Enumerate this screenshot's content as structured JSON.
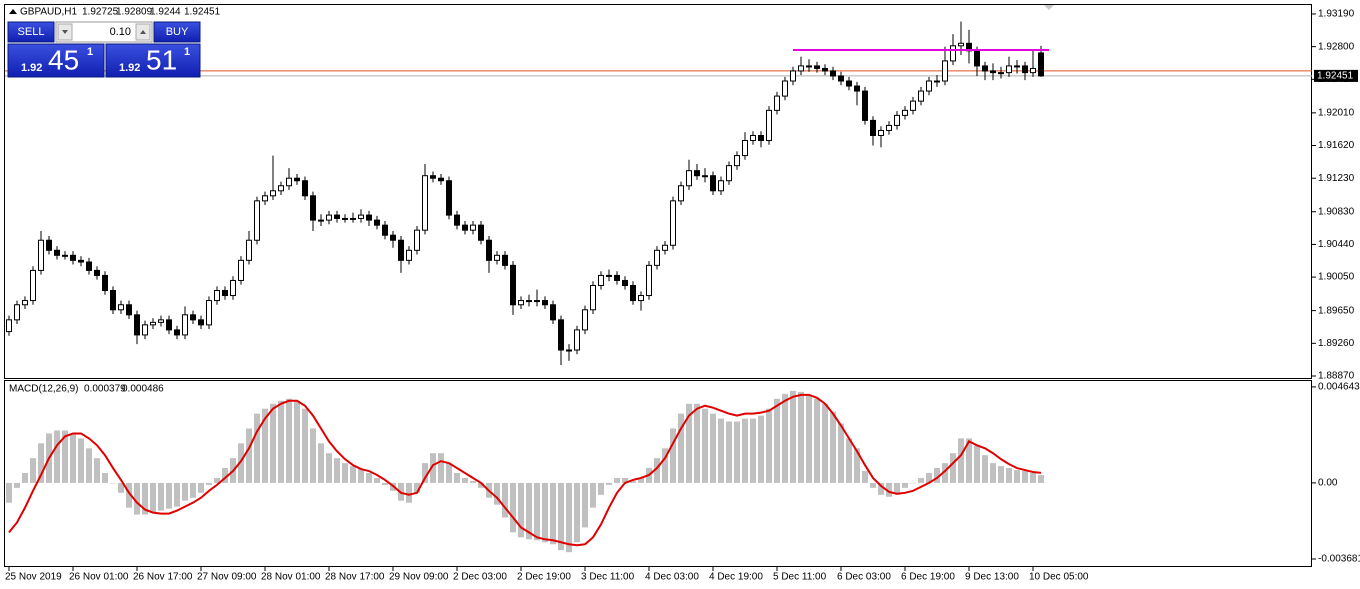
{
  "chart_data": [
    {
      "type": "candlestick",
      "symbol": "GBPAUD,H1",
      "open": [
        1.894,
        1.8954,
        1.8972,
        1.8977,
        1.9013,
        1.9049,
        1.9037,
        1.9031,
        1.9031,
        1.9025,
        1.9023,
        1.9013,
        1.9007,
        1.8989,
        1.8966,
        1.8972,
        1.896,
        1.8936,
        1.8948,
        1.8951,
        1.8954,
        1.8942,
        1.8936,
        1.896,
        1.8954,
        1.8948,
        1.8977,
        1.8989,
        1.8983,
        1.9001,
        1.9025,
        1.9049,
        1.9096,
        1.9102,
        1.9108,
        1.9114,
        1.9123,
        1.912,
        1.9102,
        1.9073,
        1.9073,
        1.9079,
        1.9075,
        1.9075,
        1.9075,
        1.9079,
        1.9073,
        1.9067,
        1.9055,
        1.9049,
        1.9025,
        1.9037,
        1.9061,
        1.9126,
        1.9123,
        1.912,
        1.9079,
        1.9067,
        1.9061,
        1.9067,
        1.9049,
        1.9025,
        1.9031,
        1.9019,
        1.8972,
        1.8977,
        1.8977,
        1.8977,
        1.8972,
        1.8954,
        1.8918,
        1.8918,
        1.8942,
        1.8966,
        1.8995,
        1.9007,
        1.9007,
        1.9001,
        1.8995,
        1.8977,
        1.8983,
        1.9019,
        1.9037,
        1.9043,
        1.9096,
        1.9114,
        1.9132,
        1.9126,
        1.9126,
        1.9108,
        1.912,
        1.9138,
        1.915,
        1.9168,
        1.9174,
        1.9168,
        1.9204,
        1.9221,
        1.9239,
        1.9251,
        1.9257,
        1.9257,
        1.9254,
        1.9251,
        1.9245,
        1.9239,
        1.9233,
        1.9227,
        1.9192,
        1.9174,
        1.918,
        1.9186,
        1.9198,
        1.9204,
        1.9215,
        1.9227,
        1.9239,
        1.9239,
        1.9263,
        1.9281,
        1.9284,
        1.9275,
        1.9257,
        1.9251,
        1.9249,
        1.9249,
        1.9257,
        1.9257,
        1.9249,
        1.92725
      ],
      "high": [
        1.8959,
        1.8977,
        1.8982,
        1.9018,
        1.906,
        1.9054,
        1.9042,
        1.9036,
        1.9036,
        1.903,
        1.9028,
        1.9018,
        1.9012,
        1.8994,
        1.8977,
        1.8977,
        1.8965,
        1.8953,
        1.8956,
        1.8959,
        1.8959,
        1.8947,
        1.897,
        1.8965,
        1.8959,
        1.8982,
        1.8994,
        1.8994,
        1.9006,
        1.903,
        1.906,
        1.9101,
        1.9107,
        1.915,
        1.9119,
        1.9135,
        1.9128,
        1.9125,
        1.9107,
        1.908,
        1.9084,
        1.9084,
        1.908,
        1.9082,
        1.9086,
        1.9084,
        1.9078,
        1.9072,
        1.906,
        1.9054,
        1.9042,
        1.9066,
        1.914,
        1.9131,
        1.9128,
        1.9125,
        1.9084,
        1.9072,
        1.9072,
        1.9072,
        1.9054,
        1.9036,
        1.9036,
        1.9024,
        1.8982,
        1.8984,
        1.899,
        1.8982,
        1.8977,
        1.8959,
        1.8925,
        1.8947,
        1.8971,
        1.9,
        1.9012,
        1.9014,
        1.9012,
        1.9006,
        1.9,
        1.8988,
        1.9024,
        1.9042,
        1.9048,
        1.9101,
        1.9119,
        1.9145,
        1.914,
        1.9135,
        1.9131,
        1.9125,
        1.9143,
        1.9155,
        1.9178,
        1.9179,
        1.9179,
        1.9209,
        1.9226,
        1.9244,
        1.9256,
        1.9268,
        1.9265,
        1.9262,
        1.9259,
        1.9256,
        1.925,
        1.9244,
        1.9238,
        1.9232,
        1.9197,
        1.9185,
        1.9191,
        1.9203,
        1.9209,
        1.922,
        1.9232,
        1.9244,
        1.9246,
        1.928,
        1.9295,
        1.931,
        1.93,
        1.928,
        1.9262,
        1.926,
        1.9256,
        1.9268,
        1.9264,
        1.9262,
        1.9275,
        1.92809
      ],
      "low": [
        1.8935,
        1.8949,
        1.8967,
        1.8972,
        1.9008,
        1.9032,
        1.9026,
        1.9026,
        1.902,
        1.9018,
        1.9008,
        1.9002,
        1.8984,
        1.8961,
        1.8961,
        1.8955,
        1.8925,
        1.8931,
        1.8943,
        1.8946,
        1.8937,
        1.8931,
        1.8931,
        1.8949,
        1.8943,
        1.8943,
        1.8972,
        1.8978,
        1.8978,
        1.8996,
        1.902,
        1.9044,
        1.9091,
        1.9097,
        1.9103,
        1.9109,
        1.9115,
        1.9097,
        1.906,
        1.9066,
        1.9068,
        1.907,
        1.907,
        1.907,
        1.907,
        1.9066,
        1.9062,
        1.905,
        1.904,
        1.901,
        1.902,
        1.9032,
        1.9056,
        1.9118,
        1.9115,
        1.9074,
        1.9062,
        1.9056,
        1.9056,
        1.9044,
        1.901,
        1.902,
        1.9014,
        1.896,
        1.8967,
        1.897,
        1.897,
        1.8967,
        1.8949,
        1.89,
        1.8905,
        1.8913,
        1.8937,
        1.8961,
        1.899,
        1.9,
        1.8996,
        1.899,
        1.8972,
        1.8965,
        1.8978,
        1.9014,
        1.9032,
        1.9038,
        1.9091,
        1.9109,
        1.9121,
        1.9118,
        1.9103,
        1.9103,
        1.9115,
        1.9133,
        1.9145,
        1.9163,
        1.916,
        1.9163,
        1.9199,
        1.9216,
        1.9234,
        1.9246,
        1.925,
        1.9249,
        1.9246,
        1.924,
        1.9234,
        1.9228,
        1.921,
        1.9187,
        1.9162,
        1.916,
        1.9175,
        1.9181,
        1.9193,
        1.9199,
        1.921,
        1.9222,
        1.9232,
        1.9234,
        1.9258,
        1.927,
        1.926,
        1.9245,
        1.924,
        1.924,
        1.9242,
        1.9244,
        1.9248,
        1.924,
        1.9244,
        1.9244
      ],
      "close": [
        1.8954,
        1.8972,
        1.8977,
        1.9013,
        1.9049,
        1.9037,
        1.9031,
        1.9031,
        1.9025,
        1.9023,
        1.9013,
        1.9007,
        1.8989,
        1.8966,
        1.8972,
        1.896,
        1.8936,
        1.8948,
        1.8951,
        1.8954,
        1.8942,
        1.8936,
        1.896,
        1.8954,
        1.8948,
        1.8977,
        1.8989,
        1.8983,
        1.9001,
        1.9025,
        1.9049,
        1.9096,
        1.9102,
        1.9108,
        1.9114,
        1.9123,
        1.912,
        1.9102,
        1.9073,
        1.9073,
        1.9079,
        1.9075,
        1.9075,
        1.9075,
        1.9079,
        1.9073,
        1.9067,
        1.9055,
        1.9049,
        1.9025,
        1.9037,
        1.9061,
        1.9126,
        1.9123,
        1.912,
        1.9079,
        1.9067,
        1.9061,
        1.9067,
        1.9049,
        1.9025,
        1.9031,
        1.9019,
        1.8972,
        1.8977,
        1.8977,
        1.8977,
        1.8972,
        1.8954,
        1.8918,
        1.8918,
        1.8942,
        1.8966,
        1.8995,
        1.9007,
        1.9007,
        1.9001,
        1.8995,
        1.8977,
        1.8983,
        1.9019,
        1.9037,
        1.9043,
        1.9096,
        1.9114,
        1.9132,
        1.9126,
        1.9126,
        1.9108,
        1.912,
        1.9138,
        1.915,
        1.9168,
        1.9174,
        1.9168,
        1.9204,
        1.9221,
        1.9239,
        1.9251,
        1.9257,
        1.9257,
        1.9254,
        1.9251,
        1.9245,
        1.9239,
        1.9233,
        1.9227,
        1.9192,
        1.9174,
        1.918,
        1.9186,
        1.9198,
        1.9204,
        1.9215,
        1.9227,
        1.9239,
        1.9239,
        1.9263,
        1.9281,
        1.9284,
        1.9275,
        1.9257,
        1.9251,
        1.9249,
        1.9249,
        1.9257,
        1.9257,
        1.9249,
        1.9254,
        1.92451
      ],
      "categories": [
        "25 Nov 2019",
        null,
        null,
        null,
        null,
        null,
        null,
        null,
        "26 Nov 01:00",
        null,
        null,
        null,
        null,
        null,
        null,
        null,
        "26 Nov 17:00",
        null,
        null,
        null,
        null,
        null,
        null,
        null,
        "27 Nov 09:00",
        null,
        null,
        null,
        null,
        null,
        null,
        null,
        "28 Nov 01:00",
        null,
        null,
        null,
        null,
        null,
        null,
        null,
        "28 Nov 17:00",
        null,
        null,
        null,
        null,
        null,
        null,
        null,
        "29 Nov 09:00",
        null,
        null,
        null,
        null,
        null,
        null,
        null,
        "2 Dec 03:00",
        null,
        null,
        null,
        null,
        null,
        null,
        null,
        "2 Dec 19:00",
        null,
        null,
        null,
        null,
        null,
        null,
        null,
        "3 Dec 11:00",
        null,
        null,
        null,
        null,
        null,
        null,
        null,
        "4 Dec 03:00",
        null,
        null,
        null,
        null,
        null,
        null,
        null,
        "4 Dec 19:00",
        null,
        null,
        null,
        null,
        null,
        null,
        null,
        "5 Dec 11:00",
        null,
        null,
        null,
        null,
        null,
        null,
        null,
        "6 Dec 03:00",
        null,
        null,
        null,
        null,
        null,
        null,
        null,
        "6 Dec 19:00",
        null,
        null,
        null,
        null,
        null,
        null,
        null,
        "9 Dec 13:00",
        null,
        null,
        null,
        null,
        null,
        null,
        null,
        "10 Dec 05:00",
        null
      ],
      "ylim": [
        1.88846,
        1.93297
      ],
      "yticks": [
        {
          "value": 1.9319,
          "label": "1.93190"
        },
        {
          "value": 1.928,
          "label": "1.92800"
        },
        {
          "value": 1.9241,
          "label": "1.92410"
        },
        {
          "value": 1.9201,
          "label": "1.92010"
        },
        {
          "value": 1.9162,
          "label": "1.91620"
        },
        {
          "value": 1.9123,
          "label": "1.91230"
        },
        {
          "value": 1.9083,
          "label": "1.90830"
        },
        {
          "value": 1.9044,
          "label": "1.90440"
        },
        {
          "value": 1.9005,
          "label": "1.90050"
        },
        {
          "value": 1.8965,
          "label": "1.89650"
        },
        {
          "value": 1.8926,
          "label": "1.89260"
        },
        {
          "value": 1.8887,
          "label": "1.88870"
        }
      ],
      "trendline": 1.9276,
      "trendline_color": "#e000e0",
      "ask_line": 1.92511,
      "ask_color": "#e05020",
      "bid_color": "#b0b0b0"
    },
    {
      "type": "macd",
      "title": "MACD(12,26,9)",
      "histogram": [
        -0.000957,
        -0.000239,
        0.000479,
        0.001197,
        0.001915,
        0.002393,
        0.002537,
        0.002537,
        0.002393,
        0.002154,
        0.001675,
        0.001197,
        0.000479,
        0,
        -0.000479,
        -0.001197,
        -0.001532,
        -0.001532,
        -0.001436,
        -0.00134,
        -0.001245,
        -0.001149,
        -0.000862,
        -0.000718,
        -0.000479,
        -9.6e-05,
        0.000239,
        0.000718,
        0.001197,
        0.001915,
        0.002633,
        0.003351,
        0.00359,
        0.003829,
        0.003973,
        0.004069,
        0.003973,
        0.00359,
        0.002633,
        0.001915,
        0.001436,
        0.001197,
        0.000957,
        0.000814,
        0.00067,
        0.000479,
        0.000239,
        -9.6e-05,
        -0.000383,
        -0.000862,
        -0.000957,
        -0.000479,
        0.000957,
        0.001436,
        0.001436,
        0.000957,
        0.000479,
        0.000239,
        9.6e-05,
        -0.000239,
        -0.000718,
        -0.001053,
        -0.001675,
        -0.002393,
        -0.002633,
        -0.002728,
        -0.002776,
        -0.002872,
        -0.002968,
        -0.003255,
        -0.003351,
        -0.002872,
        -0.002154,
        -0.001197,
        -0.000574,
        -9.6e-05,
        0.000239,
        0.000239,
        9.6e-05,
        0.000239,
        0.000718,
        0.001197,
        0.001675,
        0.002633,
        0.003351,
        0.003829,
        0.003829,
        0.00359,
        0.003351,
        0.003111,
        0.002968,
        0.002968,
        0.003111,
        0.003111,
        0.003255,
        0.00359,
        0.004069,
        0.004308,
        0.004452,
        0.004404,
        0.004212,
        0.004069,
        0.003829,
        0.003447,
        0.002872,
        0.002154,
        0.001675,
        0.000574,
        -0.000239,
        -0.000574,
        -0.00067,
        -0.000479,
        -0.000239,
        0,
        0.000239,
        0.000479,
        0.000718,
        0.000957,
        0.001436,
        0.002154,
        0.002154,
        0.001819,
        0.00134,
        0.000957,
        0.000814,
        0.000718,
        0.000622,
        0.000574,
        0.000479,
        0.000379
      ],
      "signal": [
        -0.002393,
        -0.001915,
        -0.001197,
        -0.000383,
        0.000383,
        0.001197,
        0.001819,
        0.00225,
        0.002393,
        0.002393,
        0.002154,
        0.001819,
        0.00134,
        0.000718,
        0.000144,
        -0.000479,
        -0.000957,
        -0.001292,
        -0.001436,
        -0.001484,
        -0.001484,
        -0.00134,
        -0.001149,
        -0.000957,
        -0.000718,
        -0.000383,
        -9.6e-05,
        0.000239,
        0.000574,
        0.001053,
        0.001675,
        0.002489,
        0.003111,
        0.00359,
        0.003829,
        0.003973,
        0.003973,
        0.003734,
        0.003255,
        0.002633,
        0.00201,
        0.001532,
        0.001149,
        0.000862,
        0.00067,
        0.000574,
        0.000383,
        0.000144,
        -0.000144,
        -0.000479,
        -0.000574,
        -0.000479,
        0.000239,
        0.000862,
        0.001053,
        0.000957,
        0.000718,
        0.000479,
        0.000239,
        0,
        -0.000383,
        -0.000718,
        -0.001197,
        -0.001675,
        -0.002154,
        -0.002393,
        -0.002633,
        -0.002728,
        -0.002776,
        -0.002872,
        -0.002968,
        -0.003016,
        -0.002968,
        -0.002633,
        -0.00201,
        -0.001197,
        -0.000479,
        0,
        0.000144,
        0.000239,
        0.000383,
        0.000718,
        0.001197,
        0.001915,
        0.002633,
        0.003255,
        0.00359,
        0.003734,
        0.003638,
        0.003494,
        0.003351,
        0.003255,
        0.003351,
        0.003351,
        0.003399,
        0.003494,
        0.003734,
        0.003973,
        0.004164,
        0.00426,
        0.00426,
        0.004117,
        0.003829,
        0.003351,
        0.002776,
        0.002154,
        0.001532,
        0.000862,
        0.000239,
        -0.000144,
        -0.000431,
        -0.000527,
        -0.000479,
        -0.000383,
        -0.000191,
        0,
        0.000239,
        0.000574,
        0.000957,
        0.00134,
        0.00201,
        0.001819,
        0.001675,
        0.001436,
        0.001149,
        0.000909,
        0.000718,
        0.000622,
        0.000527,
        0.000486
      ],
      "histogram_color": "#c0c0c0",
      "signal_color": "#e00000",
      "ylim": [
        -0.00402,
        0.00493
      ],
      "yticks": [
        0.004643,
        {
          "value": 0,
          "label": "0.00"
        },
        -0.003681
      ]
    }
  ],
  "trade_panel": {
    "sell": "SELL",
    "buy": "BUY",
    "lot": "0.10",
    "bid": {
      "big": "1.92",
      "pips": "45",
      "point": "1"
    },
    "ask": {
      "big": "1.92",
      "pips": "51",
      "point": "1"
    }
  }
}
